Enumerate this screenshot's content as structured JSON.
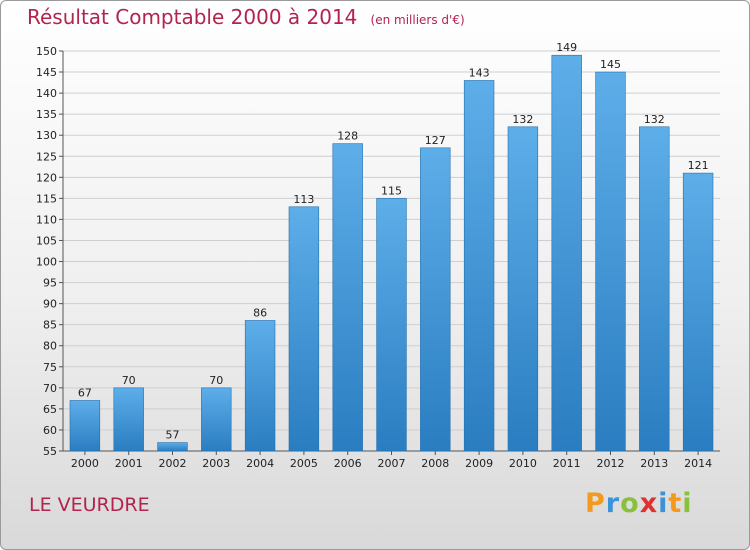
{
  "header": {
    "title": "Résultat Comptable 2000 à 2014",
    "unit": "(en milliers d'€)"
  },
  "footer": {
    "commune": "LE VEURDRE",
    "logo_text": "Proxiti"
  },
  "colors": {
    "title": "#b2234e",
    "bar_top": "#5daee9",
    "bar_bottom": "#2a7dc0",
    "logo_letters": [
      "#f39a1e",
      "#3a93d8",
      "#89c03c",
      "#e0302f",
      "#3a93d8",
      "#f39a1e",
      "#89c03c"
    ]
  },
  "chart_data": {
    "type": "bar",
    "categories": [
      "2000",
      "2001",
      "2002",
      "2003",
      "2004",
      "2005",
      "2006",
      "2007",
      "2008",
      "2009",
      "2010",
      "2011",
      "2012",
      "2013",
      "2014"
    ],
    "values": [
      67,
      70,
      57,
      70,
      86,
      113,
      128,
      115,
      127,
      143,
      132,
      149,
      145,
      132,
      121
    ],
    "title": "Résultat Comptable 2000 à 2014",
    "xlabel": "",
    "ylabel": "",
    "ylim": [
      55,
      150
    ],
    "yticks": [
      55,
      60,
      65,
      70,
      75,
      80,
      85,
      90,
      95,
      100,
      105,
      110,
      115,
      120,
      125,
      130,
      135,
      140,
      145,
      150
    ],
    "grid": true,
    "data_labels": true
  }
}
